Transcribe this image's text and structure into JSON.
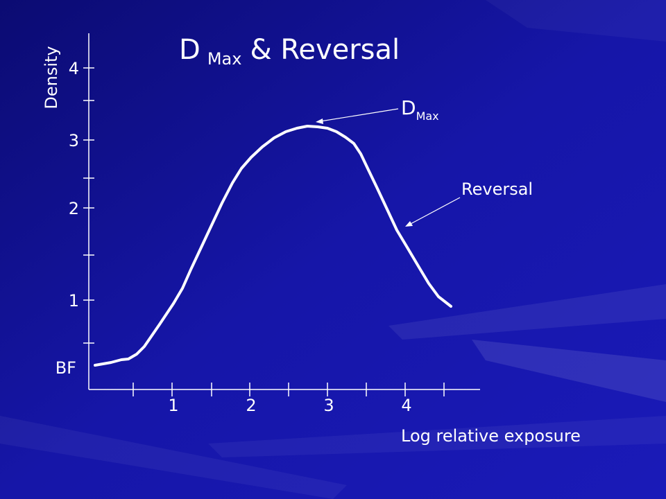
{
  "title": {
    "main": "D",
    "sub": "Max",
    "rest": "& Reversal"
  },
  "y_axis": {
    "label": "Density",
    "ticks": [
      "4",
      "3",
      "2",
      "1",
      "BF"
    ]
  },
  "x_axis": {
    "label": "Log relative exposure",
    "ticks": [
      "1",
      "2",
      "3",
      "4"
    ]
  },
  "annotations": {
    "dmax": {
      "main": "D",
      "sub": "Max"
    },
    "reversal": "Reversal"
  }
}
